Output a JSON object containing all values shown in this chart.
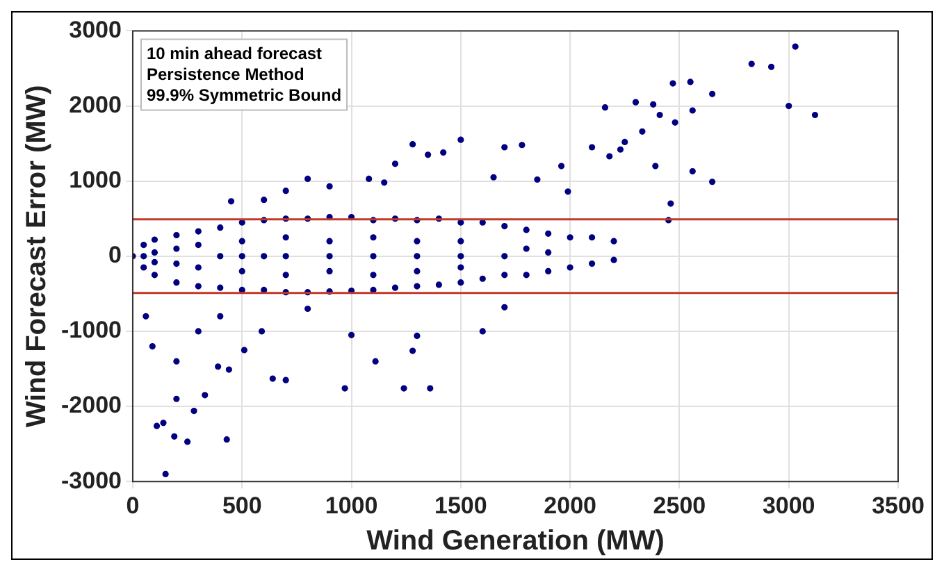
{
  "chart_data": {
    "type": "scatter",
    "xlabel": "Wind Generation (MW)",
    "ylabel": "Wind Forecast Error (MW)",
    "annotations": [
      "10 min ahead forecast",
      "Persistence Method",
      "99.9% Symmetric Bound"
    ],
    "xlim": [
      0,
      3500
    ],
    "xticks": [
      0,
      500,
      1000,
      1500,
      2000,
      2500,
      3000,
      3500
    ],
    "ylim": [
      -3000,
      3000
    ],
    "yticks": [
      -3000,
      -2000,
      -1000,
      0,
      1000,
      2000,
      3000
    ],
    "grid": true,
    "marker": "circle",
    "ref_lines": [
      {
        "axis": "y",
        "value": 490,
        "color": "#c0392b"
      },
      {
        "axis": "y",
        "value": -490,
        "color": "#c0392b"
      }
    ],
    "series": [
      {
        "color": "#000080",
        "x": [
          0,
          50,
          50,
          50,
          100,
          100,
          100,
          100,
          200,
          200,
          200,
          200,
          300,
          300,
          300,
          300,
          400,
          400,
          400,
          500,
          500,
          500,
          500,
          500,
          600,
          600,
          600,
          700,
          700,
          700,
          700,
          700,
          800,
          800,
          900,
          900,
          900,
          900,
          900,
          1000,
          1000,
          1100,
          1100,
          1100,
          1100,
          1100,
          1200,
          1200,
          1300,
          1300,
          1300,
          1300,
          1300,
          1400,
          1400,
          1500,
          1500,
          1500,
          1500,
          1500,
          1600,
          1600,
          1700,
          1700,
          1700,
          1800,
          1800,
          1800,
          1900,
          1900,
          1900,
          2000,
          2000,
          2100,
          2100,
          2200,
          2200,
          2830,
          2920,
          3030,
          3000,
          3120,
          2650,
          2550,
          2470,
          2380,
          2300,
          2480,
          2410,
          2560,
          2560,
          2650,
          2460,
          2450,
          2160,
          2180,
          2230,
          2250,
          2330,
          2390,
          1990,
          1700,
          1500,
          1420,
          1280,
          1200,
          1080,
          900,
          800,
          700,
          600,
          450,
          1780,
          1850,
          1960,
          2100,
          1650,
          1350,
          1150,
          150,
          190,
          140,
          250,
          280,
          430,
          330,
          110,
          200,
          510,
          640,
          700,
          440,
          390,
          590,
          1110,
          1280,
          1000,
          1360,
          1240,
          970,
          1300,
          1600,
          1700,
          90,
          60,
          300,
          200,
          400,
          800
        ],
        "values": [
          0,
          150,
          -150,
          0,
          220,
          -250,
          50,
          -80,
          280,
          -350,
          100,
          -100,
          330,
          -400,
          150,
          -150,
          380,
          -420,
          0,
          450,
          -450,
          200,
          -200,
          0,
          480,
          -450,
          0,
          500,
          -480,
          250,
          -250,
          0,
          500,
          -480,
          520,
          -470,
          0,
          200,
          -200,
          520,
          -460,
          480,
          -450,
          0,
          250,
          -250,
          500,
          -420,
          480,
          -400,
          0,
          200,
          -200,
          500,
          -380,
          450,
          -350,
          0,
          200,
          -150,
          450,
          -300,
          400,
          -250,
          0,
          350,
          -250,
          100,
          300,
          -200,
          50,
          250,
          -150,
          250,
          -100,
          200,
          -50,
          2560,
          2520,
          2790,
          2000,
          1880,
          2160,
          2320,
          2300,
          2020,
          2050,
          1780,
          1880,
          1940,
          1130,
          990,
          700,
          480,
          1980,
          1330,
          1420,
          1520,
          1660,
          1200,
          860,
          1450,
          1550,
          1380,
          1490,
          1230,
          1030,
          930,
          1030,
          870,
          750,
          730,
          1480,
          1020,
          1200,
          1450,
          1050,
          1350,
          980,
          -2900,
          -2400,
          -2220,
          -2470,
          -2060,
          -2440,
          -1850,
          -2260,
          -1900,
          -1250,
          -1630,
          -1650,
          -1510,
          -1470,
          -1000,
          -1400,
          -1260,
          -1050,
          -1760,
          -1760,
          -1760,
          -1060,
          -1000,
          -680,
          -1200,
          -800,
          -1000,
          -1400,
          -800,
          -700
        ]
      }
    ]
  }
}
